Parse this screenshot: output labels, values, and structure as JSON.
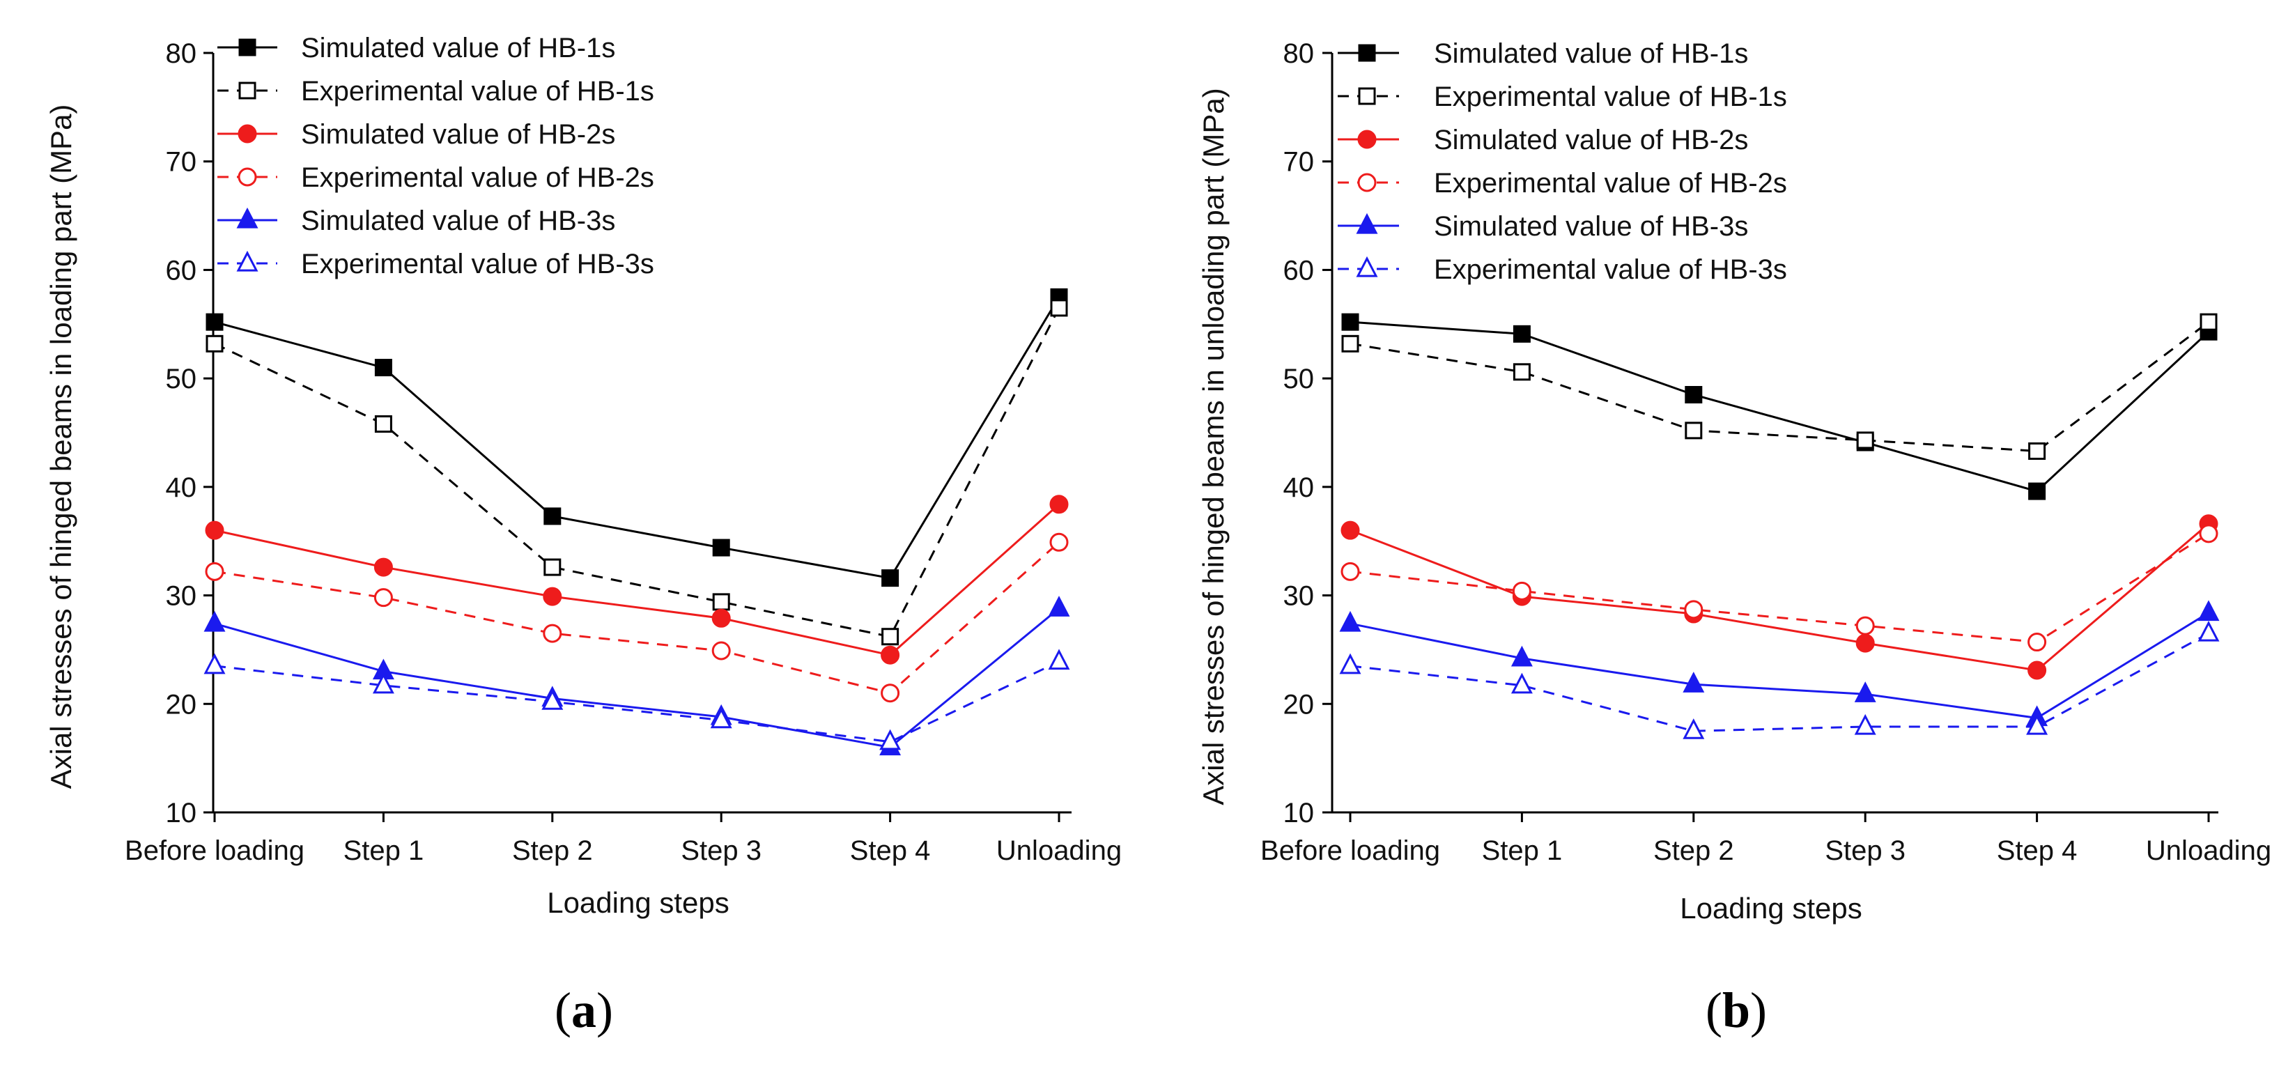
{
  "colors": {
    "black": "#000000",
    "red": "#ee1c1c",
    "blue": "#1a1aee"
  },
  "chart_data": [
    {
      "type": "line",
      "panel_label": "a",
      "xlabel": "Loading steps",
      "ylabel": "Axial stresses of hinged beams in loading part (MPa)",
      "categories": [
        "Before loading",
        "Step 1",
        "Step 2",
        "Step 3",
        "Step 4",
        "Unloading"
      ],
      "ylim": [
        10,
        80
      ],
      "yticks": [
        10,
        20,
        30,
        40,
        50,
        60,
        70,
        80
      ],
      "legend_position": "top-left",
      "series": [
        {
          "name": "Simulated value of HB-1s",
          "color": "black",
          "marker": "square",
          "filled": true,
          "dashed": false,
          "values": [
            55.2,
            51.0,
            37.3,
            34.4,
            31.6,
            57.5
          ]
        },
        {
          "name": "Experimental value of HB-1s",
          "color": "black",
          "marker": "square",
          "filled": false,
          "dashed": true,
          "values": [
            53.2,
            45.8,
            32.6,
            29.4,
            26.2,
            56.5
          ]
        },
        {
          "name": "Simulated value of HB-2s",
          "color": "red",
          "marker": "circle",
          "filled": true,
          "dashed": false,
          "values": [
            36.0,
            32.6,
            29.9,
            27.9,
            24.5,
            38.4
          ]
        },
        {
          "name": "Experimental value of HB-2s",
          "color": "red",
          "marker": "circle",
          "filled": false,
          "dashed": true,
          "values": [
            32.2,
            29.8,
            26.5,
            24.9,
            21.0,
            34.9
          ]
        },
        {
          "name": "Simulated value of HB-3s",
          "color": "blue",
          "marker": "triangle",
          "filled": true,
          "dashed": false,
          "values": [
            27.4,
            23.0,
            20.5,
            18.8,
            16.0,
            28.8
          ]
        },
        {
          "name": "Experimental value of HB-3s",
          "color": "blue",
          "marker": "triangle",
          "filled": false,
          "dashed": true,
          "values": [
            23.5,
            21.7,
            20.2,
            18.5,
            16.5,
            23.9
          ]
        }
      ]
    },
    {
      "type": "line",
      "panel_label": "b",
      "xlabel": "Loading steps",
      "ylabel": "Axial stresses of hinged beams in unloading part (MPa)",
      "categories": [
        "Before loading",
        "Step 1",
        "Step 2",
        "Step 3",
        "Step 4",
        "Unloading"
      ],
      "ylim": [
        10,
        80
      ],
      "yticks": [
        10,
        20,
        30,
        40,
        50,
        60,
        70,
        80
      ],
      "legend_position": "top-left",
      "series": [
        {
          "name": "Simulated value of HB-1s",
          "color": "black",
          "marker": "square",
          "filled": true,
          "dashed": false,
          "values": [
            55.2,
            54.1,
            48.5,
            44.1,
            39.6,
            54.3
          ]
        },
        {
          "name": "Experimental value of HB-1s",
          "color": "black",
          "marker": "square",
          "filled": false,
          "dashed": true,
          "values": [
            53.2,
            50.6,
            45.2,
            44.3,
            43.3,
            55.2
          ]
        },
        {
          "name": "Simulated value of HB-2s",
          "color": "red",
          "marker": "circle",
          "filled": true,
          "dashed": false,
          "values": [
            36.0,
            29.9,
            28.3,
            25.6,
            23.1,
            36.6
          ]
        },
        {
          "name": "Experimental value of HB-2s",
          "color": "red",
          "marker": "circle",
          "filled": false,
          "dashed": true,
          "values": [
            32.2,
            30.4,
            28.7,
            27.2,
            25.7,
            35.7
          ]
        },
        {
          "name": "Simulated value of HB-3s",
          "color": "blue",
          "marker": "triangle",
          "filled": true,
          "dashed": false,
          "values": [
            27.4,
            24.2,
            21.8,
            20.9,
            18.7,
            28.4
          ]
        },
        {
          "name": "Experimental value of HB-3s",
          "color": "blue",
          "marker": "triangle",
          "filled": false,
          "dashed": true,
          "values": [
            23.5,
            21.7,
            17.5,
            17.9,
            17.9,
            26.5
          ]
        }
      ]
    }
  ]
}
